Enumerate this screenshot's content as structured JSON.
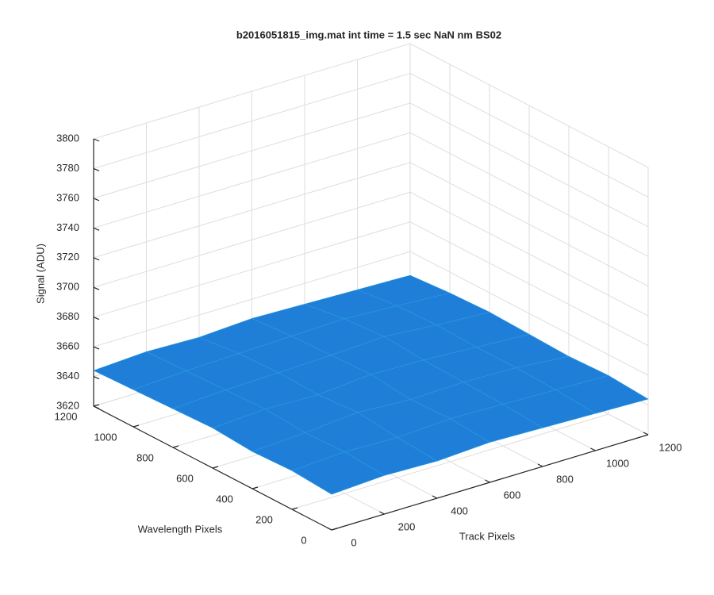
{
  "chart_data": {
    "type": "surface",
    "title": "b2016051815_img.mat int time = 1.5 sec  NaN nm BS02",
    "xlabel": "Track Pixels",
    "ylabel": "Wavelength Pixels",
    "zlabel": "Signal (ADU)",
    "x": [
      0,
      200,
      400,
      600,
      800,
      1000,
      1200
    ],
    "y": [
      0,
      200,
      400,
      600,
      800,
      1000,
      1200
    ],
    "z": [
      [
        3644,
        3646,
        3645,
        3647,
        3646,
        3645,
        3644
      ],
      [
        3646,
        3648,
        3647,
        3649,
        3648,
        3647,
        3646
      ],
      [
        3645,
        3647,
        3650,
        3648,
        3649,
        3648,
        3645
      ],
      [
        3647,
        3649,
        3648,
        3651,
        3650,
        3648,
        3646
      ],
      [
        3646,
        3648,
        3649,
        3650,
        3652,
        3649,
        3647
      ],
      [
        3645,
        3647,
        3648,
        3649,
        3650,
        3648,
        3646
      ],
      [
        3644,
        3646,
        3645,
        3647,
        3646,
        3645,
        3644
      ]
    ],
    "color": "#1f7fd8",
    "xlim": [
      0,
      1200
    ],
    "ylim": [
      0,
      1200
    ],
    "zlim": [
      3620,
      3800
    ],
    "xticks": [
      0,
      200,
      400,
      600,
      800,
      1000,
      1200
    ],
    "yticks": [
      0,
      200,
      400,
      600,
      800,
      1000,
      1200
    ],
    "zticks": [
      3620,
      3640,
      3660,
      3680,
      3700,
      3720,
      3740,
      3760,
      3780,
      3800
    ],
    "grid": true
  }
}
